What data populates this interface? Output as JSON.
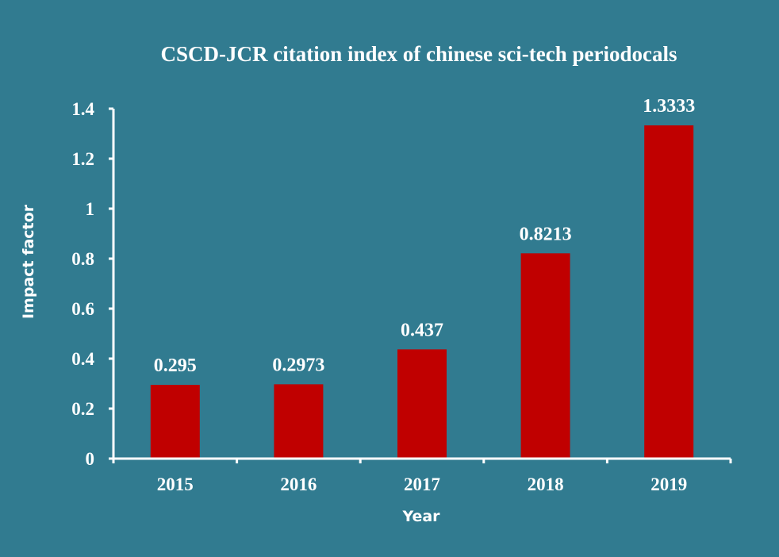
{
  "chart_data": {
    "type": "bar",
    "title": "CSCD-JCR citation index of chinese sci-tech periodocals",
    "xlabel": "Year",
    "ylabel": "Impact factor",
    "categories": [
      "2015",
      "2016",
      "2017",
      "2018",
      "2019"
    ],
    "values": [
      0.295,
      0.2973,
      0.437,
      0.8213,
      1.3333
    ],
    "data_labels": [
      "0.295",
      "0.2973",
      "0.437",
      "0.8213",
      "1.3333"
    ],
    "ylim": [
      0,
      1.4
    ],
    "yticks": [
      "0",
      "0.2",
      "0.4",
      "0.6",
      "0.8",
      "1",
      "1.2",
      "1.4"
    ],
    "grid": false,
    "legend": "none"
  },
  "colors": {
    "background": "#317b90",
    "bar": "#c00000",
    "axis": "#ffffff",
    "text": "#ffffff"
  }
}
